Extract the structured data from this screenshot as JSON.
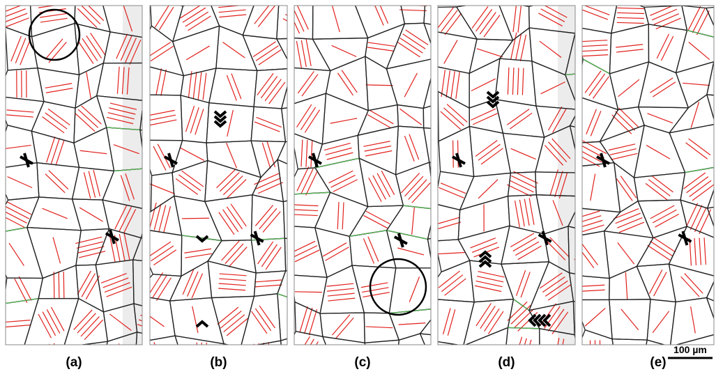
{
  "panels": [
    {
      "label": "(a)"
    },
    {
      "label": "(b)"
    },
    {
      "label": "(c)"
    },
    {
      "label": "(d)"
    },
    {
      "label": "(e)"
    }
  ],
  "scale_bar": {
    "label": "100 µm"
  }
}
